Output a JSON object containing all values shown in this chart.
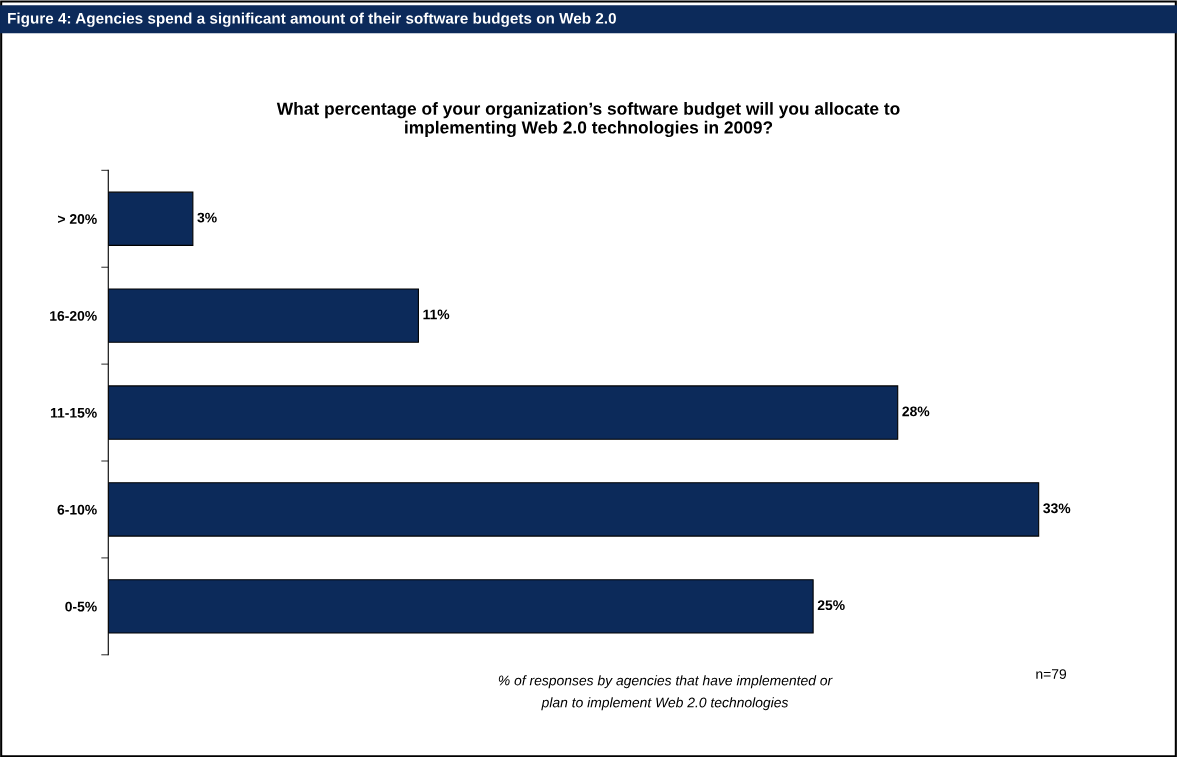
{
  "chart_data": {
    "type": "bar",
    "orientation": "horizontal",
    "title": "Figure 4: Agencies spend a significant amount of their software budgets on Web 2.0",
    "subtitle": "What percentage of your organization’s software budget will you allocate to\nimplementing Web 2.0 technologies in 2009?",
    "categories": [
      "> 20%",
      "16-20%",
      "11-15%",
      "6-10%",
      "0-5%"
    ],
    "values": [
      3,
      11,
      28,
      33,
      25
    ],
    "value_labels": [
      "3%",
      "11%",
      "28%",
      "33%",
      "25%"
    ],
    "color": "#0c2a5a",
    "annotations": [
      "% of responses by agencies that have implemented or\nplan to implement Web 2.0 technologies",
      "n=79"
    ],
    "grid": false,
    "legend": false,
    "tick_labels": "y"
  }
}
